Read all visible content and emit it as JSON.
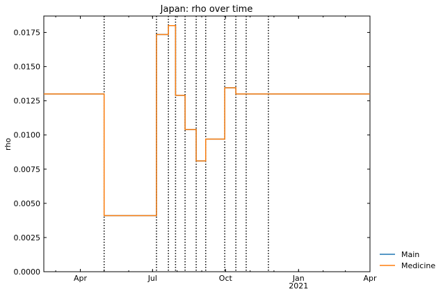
{
  "chart_data": {
    "type": "line",
    "title": "Japan: rho over time",
    "xlabel": "",
    "ylabel": "rho",
    "x_range": [
      "2020-02-15",
      "2021-04-01"
    ],
    "ylim": [
      0,
      0.0187
    ],
    "yticks": [
      0.0,
      0.0025,
      0.005,
      0.0075,
      0.01,
      0.0125,
      0.015,
      0.0175
    ],
    "ytick_labels": [
      "0.0000",
      "0.0025",
      "0.0050",
      "0.0075",
      "0.0100",
      "0.0125",
      "0.0150",
      "0.0175"
    ],
    "xticks": [
      {
        "date": "2020-04-01",
        "label": "Apr",
        "sublabel": ""
      },
      {
        "date": "2020-07-01",
        "label": "Jul",
        "sublabel": ""
      },
      {
        "date": "2020-10-01",
        "label": "Oct",
        "sublabel": ""
      },
      {
        "date": "2021-01-01",
        "label": "Jan",
        "sublabel": "2021"
      },
      {
        "date": "2021-04-01",
        "label": "Apr",
        "sublabel": ""
      }
    ],
    "vlines": [
      "2020-05-01",
      "2020-07-06",
      "2020-07-21",
      "2020-07-30",
      "2020-08-11",
      "2020-08-25",
      "2020-09-06",
      "2020-09-30",
      "2020-10-14",
      "2020-10-27",
      "2020-11-24"
    ],
    "grid": false,
    "legend_position": "outside-right-bottom",
    "series": [
      {
        "name": "Main",
        "color": "#1f77b4",
        "step": true,
        "x": [
          "2020-02-15",
          "2020-05-01",
          "2020-07-06",
          "2020-07-21",
          "2020-07-30",
          "2020-08-11",
          "2020-08-25",
          "2020-09-06",
          "2020-09-30",
          "2020-10-14",
          "2021-04-01"
        ],
        "values": [
          0.013,
          0.0041,
          0.01735,
          0.018,
          0.0129,
          0.0104,
          0.0081,
          0.0097,
          0.01345,
          0.013,
          0.013
        ]
      },
      {
        "name": "Medicine",
        "color": "#ff7f0e",
        "step": true,
        "x": [
          "2020-02-15",
          "2020-05-01",
          "2020-07-06",
          "2020-07-21",
          "2020-07-30",
          "2020-08-11",
          "2020-08-25",
          "2020-09-06",
          "2020-09-30",
          "2020-10-14",
          "2021-04-01"
        ],
        "values": [
          0.013,
          0.0041,
          0.01735,
          0.018,
          0.0129,
          0.0104,
          0.0081,
          0.0097,
          0.01345,
          0.013,
          0.013
        ]
      }
    ]
  }
}
